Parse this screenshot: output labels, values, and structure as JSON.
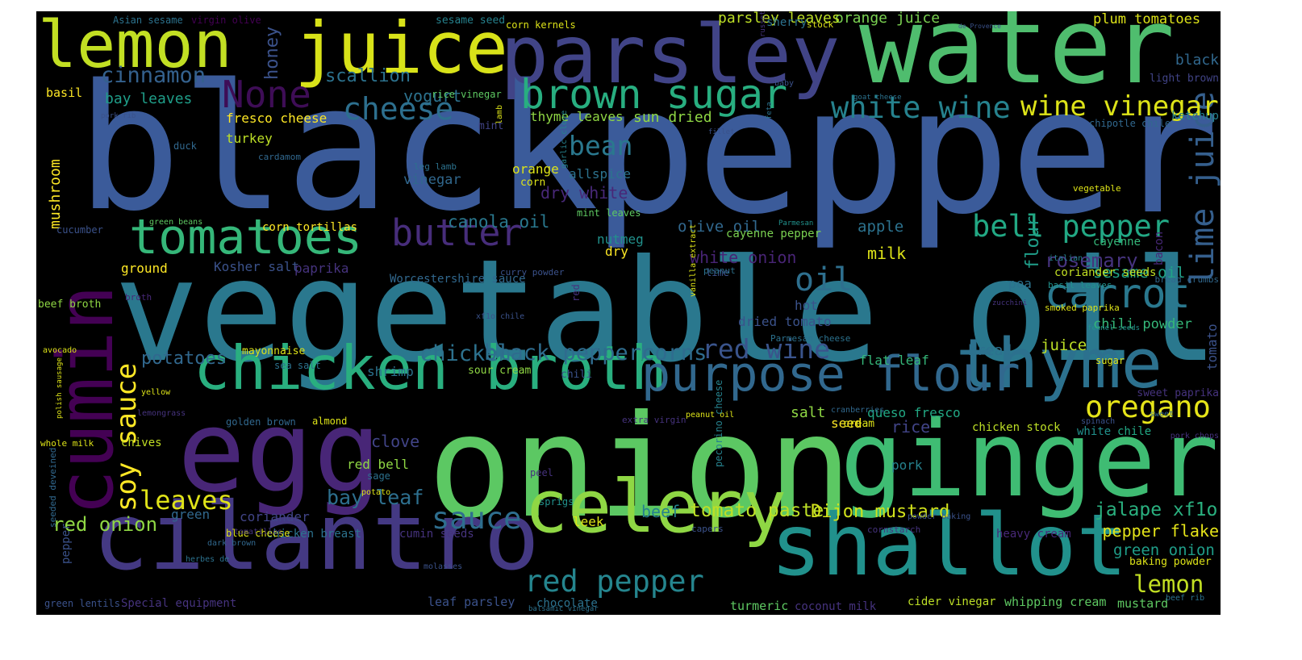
{
  "words": [
    {
      "t": "black",
      "c": "#3b5b9a"
    },
    {
      "t": "pepper",
      "c": "#3b5b9a"
    },
    {
      "t": "vegetable oil",
      "c": "#2a788e"
    },
    {
      "t": "onion",
      "c": "#5cc863"
    },
    {
      "t": "water",
      "c": "#4fbd6e"
    },
    {
      "t": "egg",
      "c": "#482677"
    },
    {
      "t": "ginger",
      "c": "#3fbc73"
    },
    {
      "t": "parsley",
      "c": "#414487"
    },
    {
      "t": "juice",
      "c": "#d8e219"
    },
    {
      "t": "lemon",
      "c": "#c2df23"
    },
    {
      "t": "cumin",
      "c": "#440154"
    },
    {
      "t": "cilantro",
      "c": "#443983"
    },
    {
      "t": "shallot",
      "c": "#21918c"
    },
    {
      "t": "celery",
      "c": "#8fd744"
    },
    {
      "t": "thyme",
      "c": "#2c718e"
    },
    {
      "t": "chicken broth",
      "c": "#29af7f"
    },
    {
      "t": "tomatoes",
      "c": "#35b779"
    },
    {
      "t": "purpose flour",
      "c": "#31688e"
    },
    {
      "t": "brown sugar",
      "c": "#28ae80"
    },
    {
      "t": "None",
      "c": "#3e0d56"
    },
    {
      "t": "butter",
      "c": "#472d7b"
    },
    {
      "t": "carrot",
      "c": "#2a788e"
    },
    {
      "t": "lime juice",
      "c": "#355f8d"
    },
    {
      "t": "soy sauce",
      "c": "#fde725"
    },
    {
      "t": "cheese",
      "c": "#2d6f8e"
    },
    {
      "t": "white wine",
      "c": "#26828e"
    },
    {
      "t": "wine vinegar",
      "c": "#dde318"
    },
    {
      "t": "bell pepper",
      "c": "#22a884"
    },
    {
      "t": "oregano",
      "c": "#e5e419"
    },
    {
      "t": "red pepper",
      "c": "#25858e"
    },
    {
      "t": "sauce",
      "c": "#2e6e8e"
    },
    {
      "t": "oil",
      "c": "#2e6f8e"
    },
    {
      "t": "cinnamon",
      "c": "#34618d"
    },
    {
      "t": "bean",
      "c": "#2a788e"
    },
    {
      "t": "red wine",
      "c": "#3a548c"
    },
    {
      "t": "black peppercorns",
      "c": "#2f6c8e"
    },
    {
      "t": "chicken",
      "c": "#2d718e"
    },
    {
      "t": "potatoes",
      "c": "#31688e"
    },
    {
      "t": "leaves",
      "c": "#dfe318"
    },
    {
      "t": "bay leaf",
      "c": "#2d6f8e"
    },
    {
      "t": "red onion",
      "c": "#8fd744"
    },
    {
      "t": "tomato paste",
      "c": "#bddf26"
    },
    {
      "t": "Dijon mustard",
      "c": "#d2e21b"
    },
    {
      "t": "jalape xf1o",
      "c": "#2ab07f"
    },
    {
      "t": "lemon",
      "c": "#c2df23"
    },
    {
      "t": "pepper flake",
      "c": "#e5e419"
    },
    {
      "t": "green onion",
      "c": "#1f9e89"
    },
    {
      "t": "rosemary",
      "c": "#46337e"
    },
    {
      "t": "honey",
      "c": "#3b528b"
    },
    {
      "t": "scallion",
      "c": "#2c728e"
    },
    {
      "t": "yogurt",
      "c": "#2c728e"
    },
    {
      "t": "canola oil",
      "c": "#2a788e"
    },
    {
      "t": "dry white",
      "c": "#482878"
    },
    {
      "t": "white onion",
      "c": "#482475"
    },
    {
      "t": "olive oil",
      "c": "#31688e"
    },
    {
      "t": "apple",
      "c": "#2c728e"
    },
    {
      "t": "milk",
      "c": "#dde318"
    },
    {
      "t": "flour",
      "c": "#1f9e89"
    },
    {
      "t": "sesame oil",
      "c": "#20a386"
    },
    {
      "t": "chili powder",
      "c": "#35b779"
    },
    {
      "t": "bread",
      "c": "#2c718e"
    },
    {
      "t": "juice",
      "c": "#bddf26"
    },
    {
      "t": "tomato",
      "c": "#3b528b"
    },
    {
      "t": "mushroom",
      "c": "#fde725"
    },
    {
      "t": "bay leaves",
      "c": "#1f9e89"
    },
    {
      "t": "fresco cheese",
      "c": "#fde725"
    },
    {
      "t": "turkey",
      "c": "#bddf26"
    },
    {
      "t": "sun dried",
      "c": "#8fd744"
    },
    {
      "t": "thyme leaves",
      "c": "#8fd744"
    },
    {
      "t": "orange juice",
      "c": "#7ad151"
    },
    {
      "t": "parsley leaves",
      "c": "#bddf26"
    },
    {
      "t": "plum tomatoes",
      "c": "#dde318"
    },
    {
      "t": "black",
      "c": "#31688e"
    },
    {
      "t": "light brown",
      "c": "#414487"
    },
    {
      "t": "ketchup",
      "c": "#26828e"
    },
    {
      "t": "basil",
      "c": "#fde725"
    },
    {
      "t": "allspice",
      "c": "#2c728e"
    },
    {
      "t": "vinegar",
      "c": "#31688e"
    },
    {
      "t": "orange",
      "c": "#dde318"
    },
    {
      "t": "nutmeg",
      "c": "#21918c"
    },
    {
      "t": "dry",
      "c": "#fde725"
    },
    {
      "t": "cayenne pepper",
      "c": "#7ad151"
    },
    {
      "t": "cayenne",
      "c": "#35b779"
    },
    {
      "t": "ground",
      "c": "#fde725"
    },
    {
      "t": "Kosher salt",
      "c": "#3b528b"
    },
    {
      "t": "paprika",
      "c": "#46337e"
    },
    {
      "t": "Worcestershire sauce",
      "c": "#31688e"
    },
    {
      "t": "coriander seeds",
      "c": "#c2df23"
    },
    {
      "t": "pea",
      "c": "#2c728e"
    },
    {
      "t": "bacon",
      "c": "#482878"
    },
    {
      "t": "hot",
      "c": "#3b528b"
    },
    {
      "t": "dried tomato",
      "c": "#3b528b"
    },
    {
      "t": "flat leaf",
      "c": "#35b779"
    },
    {
      "t": "salt",
      "c": "#8fd744"
    },
    {
      "t": "queso fresco",
      "c": "#22a884"
    },
    {
      "t": "seed",
      "c": "#fde725"
    },
    {
      "t": "rice",
      "c": "#414487"
    },
    {
      "t": "chicken stock",
      "c": "#bddf26"
    },
    {
      "t": "white",
      "c": "#21918c"
    },
    {
      "t": "chile",
      "c": "#22a884"
    },
    {
      "t": "shrimp",
      "c": "#2c728e"
    },
    {
      "t": "sour cream",
      "c": "#8fd744"
    },
    {
      "t": "clove",
      "c": "#414487"
    },
    {
      "t": "red bell",
      "c": "#8fd744"
    },
    {
      "t": "chives",
      "c": "#c2df23"
    },
    {
      "t": "green",
      "c": "#31688e"
    },
    {
      "t": "coriander",
      "c": "#414487"
    },
    {
      "t": "beef",
      "c": "#26828e"
    },
    {
      "t": "leek",
      "c": "#dde318"
    },
    {
      "t": "pork",
      "c": "#26828e"
    },
    {
      "t": "heavy cream",
      "c": "#482878"
    },
    {
      "t": "baking powder",
      "c": "#dde318"
    },
    {
      "t": "cider vinegar",
      "c": "#bddf26"
    },
    {
      "t": "whipping cream",
      "c": "#5ec962"
    },
    {
      "t": "mustard",
      "c": "#5ec962"
    },
    {
      "t": "turmeric",
      "c": "#5ec962"
    },
    {
      "t": "coconut milk",
      "c": "#46337e"
    },
    {
      "t": "leaf parsley",
      "c": "#3b528b"
    },
    {
      "t": "chocolate",
      "c": "#2c728e"
    },
    {
      "t": "Special equipment",
      "c": "#46337e"
    },
    {
      "t": "green lentils",
      "c": "#3b528b"
    },
    {
      "t": "pepper",
      "c": "#3b528b"
    },
    {
      "t": "chicken breast",
      "c": "#2c728e"
    },
    {
      "t": "blue cheese",
      "c": "#dde318"
    },
    {
      "t": "cumin seeds",
      "c": "#46337e"
    },
    {
      "t": "beef broth",
      "c": "#8fd744"
    },
    {
      "t": "cucumber",
      "c": "#3b528b"
    },
    {
      "t": "corn tortillas",
      "c": "#fde725"
    },
    {
      "t": "green beans",
      "c": "#5ec962"
    },
    {
      "t": "duck",
      "c": "#31688e"
    },
    {
      "t": "cardamom",
      "c": "#31688e"
    },
    {
      "t": "vegetable",
      "c": "#dde318"
    },
    {
      "t": "chipotle chile",
      "c": "#31688e"
    },
    {
      "t": "sherry",
      "c": "#2c728e"
    },
    {
      "t": "stock",
      "c": "#dde318"
    },
    {
      "t": "sesame seed",
      "c": "#26828e"
    },
    {
      "t": "corn kernels",
      "c": "#dde318"
    },
    {
      "t": "virgin olive",
      "c": "#440154"
    },
    {
      "t": "Asian sesame",
      "c": "#2c728e"
    },
    {
      "t": "rice vinegar",
      "c": "#5ec962"
    },
    {
      "t": "mint",
      "c": "#414487"
    },
    {
      "t": "leg lamb",
      "c": "#2c728e"
    },
    {
      "t": "corn",
      "c": "#dde318"
    },
    {
      "t": "mint leaves",
      "c": "#5ec962"
    },
    {
      "t": "lime",
      "c": "#3b528b"
    },
    {
      "t": "sea salt",
      "c": "#2c728e"
    },
    {
      "t": "mayonnaise",
      "c": "#dde318"
    },
    {
      "t": "broth",
      "c": "#482878"
    },
    {
      "t": "avocado",
      "c": "#dde318"
    },
    {
      "t": "yellow",
      "c": "#dde318"
    },
    {
      "t": "lemongrass",
      "c": "#46337e"
    },
    {
      "t": "polish sausage",
      "c": "#dde318"
    },
    {
      "t": "whole milk",
      "c": "#dde318"
    },
    {
      "t": "potato",
      "c": "#dde318"
    },
    {
      "t": "sage",
      "c": "#2c728e"
    },
    {
      "t": "sprigs",
      "c": "#21918c"
    },
    {
      "t": "peel",
      "c": "#46337e"
    },
    {
      "t": "molasses",
      "c": "#3b528b"
    },
    {
      "t": "dark brown",
      "c": "#31688e"
    },
    {
      "t": "herbes de",
      "c": "#2c728e"
    },
    {
      "t": "tomatillos",
      "c": "#46337e"
    },
    {
      "t": "balsamic vinegar",
      "c": "#2c728e"
    },
    {
      "t": "capers",
      "c": "#3b528b"
    },
    {
      "t": "cornstarch",
      "c": "#46337e"
    },
    {
      "t": "powder baking",
      "c": "#3b528b"
    },
    {
      "t": "beef rib",
      "c": "#2c728e"
    },
    {
      "t": "pork chops",
      "c": "#46337e"
    },
    {
      "t": "sweet",
      "c": "#31688e"
    },
    {
      "t": "spinach",
      "c": "#3b528b"
    },
    {
      "t": "cranberries",
      "c": "#31688e"
    },
    {
      "t": "peanut oil",
      "c": "#dde318"
    },
    {
      "t": "extra virgin",
      "c": "#46337e"
    },
    {
      "t": "golden brown",
      "c": "#31688e"
    },
    {
      "t": "almond",
      "c": "#dde318"
    },
    {
      "t": "Parmesan cheese",
      "c": "#2c728e"
    },
    {
      "t": "chili",
      "c": "#3b528b"
    },
    {
      "t": "cream",
      "c": "#dde318"
    },
    {
      "t": "sweet paprika",
      "c": "#46337e"
    },
    {
      "t": "fennel seeds",
      "c": "#21918c"
    },
    {
      "t": "sugar",
      "c": "#dde318"
    },
    {
      "t": "smoked paprika",
      "c": "#dde318"
    },
    {
      "t": "zucchini",
      "c": "#46337e"
    },
    {
      "t": "basil leaves",
      "c": "#21918c"
    },
    {
      "t": "bread crumbs",
      "c": "#31688e"
    },
    {
      "t": "italian",
      "c": "#26828e"
    },
    {
      "t": "xf1o chile",
      "c": "#3b528b"
    },
    {
      "t": "curry powder",
      "c": "#3b528b"
    },
    {
      "t": "vanilla extract",
      "c": "#dde318"
    },
    {
      "t": "Parmesan",
      "c": "#21918c"
    },
    {
      "t": "peanut",
      "c": "#2c728e"
    },
    {
      "t": "fillet",
      "c": "#3b528b"
    },
    {
      "t": "feta",
      "c": "#2c728e"
    },
    {
      "t": "baby",
      "c": "#3b528b"
    },
    {
      "t": "goat cheese",
      "c": "#2c728e"
    },
    {
      "t": "russet potatoes",
      "c": "#46337e"
    },
    {
      "t": "de Provence",
      "c": "#3b528b"
    },
    {
      "t": "pork rib",
      "c": "#3b528b"
    },
    {
      "t": "lamb",
      "c": "#dde318"
    },
    {
      "t": "garlic clove",
      "c": "#26828e"
    },
    {
      "t": "red",
      "c": "#46337e"
    },
    {
      "t": "pecorino cheese",
      "c": "#26828e"
    },
    {
      "t": "seeded deveined",
      "c": "#31688e"
    }
  ]
}
